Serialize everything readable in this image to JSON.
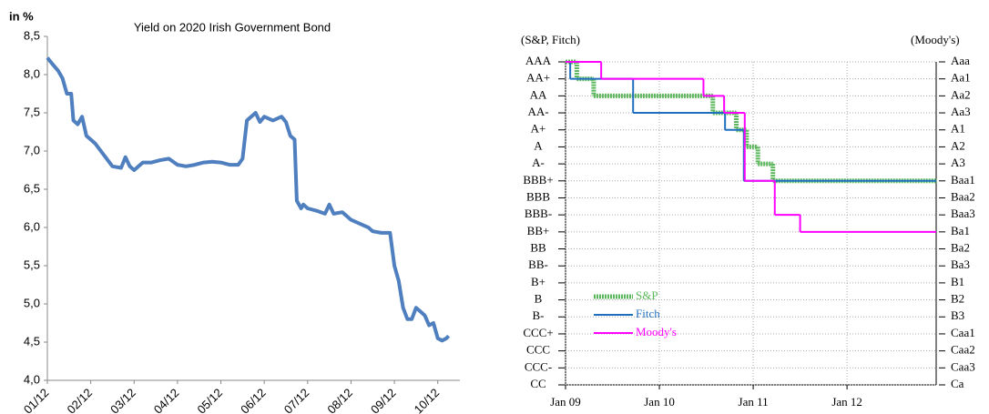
{
  "chart_data": [
    {
      "type": "line",
      "title": "Yield on 2020 Irish Government Bond",
      "y_label": "in %",
      "x": [
        0,
        0.1,
        0.25,
        0.35,
        0.45,
        0.55,
        0.6,
        0.7,
        0.8,
        0.9,
        1.0,
        1.1,
        1.3,
        1.5,
        1.7,
        1.8,
        1.9,
        2.0,
        2.2,
        2.4,
        2.6,
        2.8,
        3.0,
        3.2,
        3.4,
        3.6,
        3.8,
        4.0,
        4.2,
        4.4,
        4.5,
        4.6,
        4.7,
        4.8,
        4.9,
        5.0,
        5.2,
        5.4,
        5.5,
        5.6,
        5.7,
        5.75,
        5.85,
        5.9,
        6.0,
        6.2,
        6.4,
        6.5,
        6.6,
        6.8,
        7.0,
        7.2,
        7.4,
        7.5,
        7.7,
        7.9,
        8.0,
        8.1,
        8.2,
        8.3,
        8.4,
        8.5,
        8.6,
        8.7,
        8.8,
        8.9,
        9.0,
        9.1,
        9.2,
        9.25
      ],
      "values": [
        8.22,
        8.15,
        8.05,
        7.95,
        7.75,
        7.75,
        7.4,
        7.35,
        7.45,
        7.2,
        7.15,
        7.1,
        6.95,
        6.8,
        6.78,
        6.92,
        6.8,
        6.75,
        6.85,
        6.85,
        6.88,
        6.9,
        6.82,
        6.8,
        6.82,
        6.85,
        6.86,
        6.85,
        6.82,
        6.82,
        6.9,
        7.4,
        7.45,
        7.5,
        7.38,
        7.45,
        7.4,
        7.45,
        7.38,
        7.2,
        7.15,
        6.35,
        6.25,
        6.3,
        6.25,
        6.22,
        6.18,
        6.3,
        6.18,
        6.2,
        6.1,
        6.05,
        6.0,
        5.95,
        5.93,
        5.93,
        5.5,
        5.3,
        4.95,
        4.8,
        4.8,
        4.95,
        4.9,
        4.85,
        4.72,
        4.75,
        4.55,
        4.52,
        4.55,
        4.58
      ],
      "color": "#4f7fbf",
      "xlim": [
        0,
        9.3
      ],
      "xticks": [
        {
          "value": 0,
          "label": "01/12"
        },
        {
          "value": 1,
          "label": "02/12"
        },
        {
          "value": 2,
          "label": "03/12"
        },
        {
          "value": 3,
          "label": "04/12"
        },
        {
          "value": 4,
          "label": "05/12"
        },
        {
          "value": 5,
          "label": "06/12"
        },
        {
          "value": 6,
          "label": "07/12"
        },
        {
          "value": 7,
          "label": "08/12"
        },
        {
          "value": 8,
          "label": "09/12"
        },
        {
          "value": 9,
          "label": "10/12"
        }
      ],
      "ylim": [
        4.0,
        8.5
      ],
      "yticks": [
        {
          "value": 4.0,
          "label": "4,0"
        },
        {
          "value": 4.5,
          "label": "4,5"
        },
        {
          "value": 5.0,
          "label": "5,0"
        },
        {
          "value": 5.5,
          "label": "5,5"
        },
        {
          "value": 6.0,
          "label": "6,0"
        },
        {
          "value": 6.5,
          "label": "6,5"
        },
        {
          "value": 7.0,
          "label": "7,0"
        },
        {
          "value": 7.5,
          "label": "7,5"
        },
        {
          "value": 8.0,
          "label": "8,0"
        },
        {
          "value": 8.5,
          "label": "8,5"
        }
      ],
      "grid": false
    },
    {
      "type": "step",
      "y_label": "(S&P, Fitch)",
      "y2_label": "(Moody's)",
      "series": [
        {
          "name": "S&P",
          "color": "#5cb85c",
          "x": [
            2009.0,
            2009.12,
            2009.3,
            2010.57,
            2010.82,
            2010.93,
            2011.05,
            2011.21,
            2012.95
          ],
          "values": [
            20,
            19,
            18,
            17,
            16,
            15,
            14,
            13,
            13
          ]
        },
        {
          "name": "Fitch",
          "color": "#1f6fbf",
          "x": [
            2009.0,
            2009.05,
            2009.72,
            2010.7,
            2010.9,
            2012.95
          ],
          "values": [
            20,
            19,
            17,
            16,
            13,
            13
          ]
        },
        {
          "name": "Moody's",
          "color": "#ff00ff",
          "axis": "y2",
          "x": [
            2009.0,
            2009.38,
            2010.47,
            2010.69,
            2010.91,
            2011.23,
            2011.5,
            2012.95
          ],
          "values": [
            20,
            19,
            18,
            17,
            13,
            11,
            10,
            10
          ]
        }
      ],
      "xlim": [
        2009.0,
        2012.95
      ],
      "xticks": [
        {
          "value": 2009,
          "label": "Jan 09"
        },
        {
          "value": 2010,
          "label": "Jan 10"
        },
        {
          "value": 2011,
          "label": "Jan 11"
        },
        {
          "value": 2012,
          "label": "Jan 12"
        }
      ],
      "ylim": [
        1,
        20
      ],
      "yticks": [
        {
          "value": 20,
          "label": "AAA"
        },
        {
          "value": 19,
          "label": "AA+"
        },
        {
          "value": 18,
          "label": "AA"
        },
        {
          "value": 17,
          "label": "AA-"
        },
        {
          "value": 16,
          "label": "A+"
        },
        {
          "value": 15,
          "label": "A"
        },
        {
          "value": 14,
          "label": "A-"
        },
        {
          "value": 13,
          "label": "BBB+"
        },
        {
          "value": 12,
          "label": "BBB"
        },
        {
          "value": 11,
          "label": "BBB-"
        },
        {
          "value": 10,
          "label": "BB+"
        },
        {
          "value": 9,
          "label": "BB"
        },
        {
          "value": 8,
          "label": "BB-"
        },
        {
          "value": 7,
          "label": "B+"
        },
        {
          "value": 6,
          "label": "B"
        },
        {
          "value": 5,
          "label": "B-"
        },
        {
          "value": 4,
          "label": "CCC+"
        },
        {
          "value": 3,
          "label": "CCC"
        },
        {
          "value": 2,
          "label": "CCC-"
        },
        {
          "value": 1,
          "label": "CC"
        }
      ],
      "y2lim": [
        1,
        20
      ],
      "y2ticks": [
        {
          "value": 20,
          "label": "Aaa"
        },
        {
          "value": 19,
          "label": "Aa1"
        },
        {
          "value": 18,
          "label": "Aa2"
        },
        {
          "value": 17,
          "label": "Aa3"
        },
        {
          "value": 16,
          "label": "A1"
        },
        {
          "value": 15,
          "label": "A2"
        },
        {
          "value": 14,
          "label": "A3"
        },
        {
          "value": 13,
          "label": "Baa1"
        },
        {
          "value": 12,
          "label": "Baa2"
        },
        {
          "value": 11,
          "label": "Baa3"
        },
        {
          "value": 10,
          "label": "Ba1"
        },
        {
          "value": 9,
          "label": "Ba2"
        },
        {
          "value": 8,
          "label": "Ba3"
        },
        {
          "value": 7,
          "label": "B1"
        },
        {
          "value": 6,
          "label": "B2"
        },
        {
          "value": 5,
          "label": "B3"
        },
        {
          "value": 4,
          "label": "Caa1"
        },
        {
          "value": 3,
          "label": "Caa2"
        },
        {
          "value": 2,
          "label": "Caa3"
        },
        {
          "value": 1,
          "label": "Ca"
        }
      ],
      "grid": true,
      "legend": "lower-left"
    }
  ]
}
